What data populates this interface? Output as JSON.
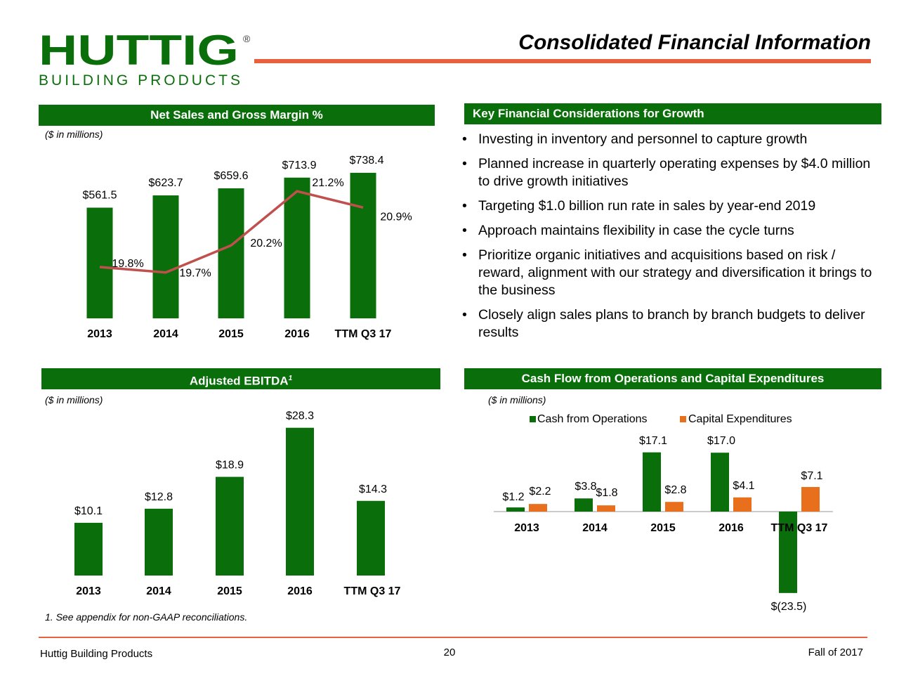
{
  "header": {
    "logo_main": "HUTTIG",
    "logo_registered": "®",
    "logo_sub": "BUILDING PRODUCTS",
    "title": "Consolidated Financial Information"
  },
  "panels": {
    "net_sales": {
      "title": "Net Sales and Gross Margin %",
      "units": "($ in millions)"
    },
    "key_financial": {
      "title": "Key  Financial Considerations for Growth",
      "bullets": [
        "Investing in inventory and personnel to capture growth",
        "Planned increase in quarterly operating expenses by $4.0 million to drive growth initiatives",
        "Targeting $1.0 billion run rate in sales by year-end 2019",
        "Approach maintains flexibility in case the cycle turns",
        "Prioritize organic initiatives and acquisitions based on risk / reward, alignment with our strategy and diversification it brings to the business",
        "Closely align sales plans to branch by branch budgets to deliver results"
      ]
    },
    "ebitda": {
      "title": "Adjusted EBITDA",
      "title_sup": "1",
      "units": "($ in millions)"
    },
    "cash_flow": {
      "title": "Cash Flow from Operations and Capital Expenditures",
      "units": "($ in millions)"
    }
  },
  "colors": {
    "green": "#0a6e0a",
    "orange": "#e8701c",
    "line": "#c0504d",
    "accent": "#e8603c"
  },
  "chart_data": [
    {
      "type": "bar",
      "title": "Net Sales and Gross Margin %",
      "categories": [
        "2013",
        "2014",
        "2015",
        "2016",
        "TTM Q3 17"
      ],
      "series": [
        {
          "values": [
            561.5,
            623.7,
            659.6,
            713.9,
            738.4
          ],
          "labels": [
            "$561.5",
            "$623.7",
            "$659.6",
            "$713.9",
            "$738.4"
          ]
        },
        {
          "type": "line",
          "values": [
            19.8,
            19.7,
            20.2,
            21.2,
            20.9
          ],
          "labels": [
            "19.8%",
            "19.7%",
            "20.2%",
            "21.2%",
            "20.9%"
          ]
        }
      ]
    },
    {
      "type": "bar",
      "title": "Adjusted EBITDA",
      "categories": [
        "2013",
        "2014",
        "2015",
        "2016",
        "TTM Q3 17"
      ],
      "values": [
        10.1,
        12.8,
        18.9,
        28.3,
        14.3
      ],
      "labels": [
        "$10.1",
        "$12.8",
        "$18.9",
        "$28.3",
        "$14.3"
      ]
    },
    {
      "type": "bar",
      "title": "Cash Flow from Operations and Capital Expenditures",
      "categories": [
        "2013",
        "2014",
        "2015",
        "2016",
        "TTM Q3 17"
      ],
      "legend": "top",
      "series": [
        {
          "name": "Cash from Operations",
          "values": [
            1.2,
            3.8,
            17.1,
            17.0,
            -23.5
          ],
          "labels": [
            "$1.2",
            "$3.8",
            "$17.1",
            "$17.0",
            "$(23.5)"
          ]
        },
        {
          "name": "Capital Expenditures",
          "values": [
            2.2,
            1.8,
            2.8,
            4.1,
            7.1
          ],
          "labels": [
            "$2.2",
            "$1.8",
            "$2.8",
            "$4.1",
            "$7.1"
          ]
        }
      ]
    }
  ],
  "footnote": "1.   See appendix for non-GAAP reconciliations.",
  "footer": {
    "left": "Huttig Building Products",
    "page": "20",
    "right": "Fall of  2017"
  }
}
